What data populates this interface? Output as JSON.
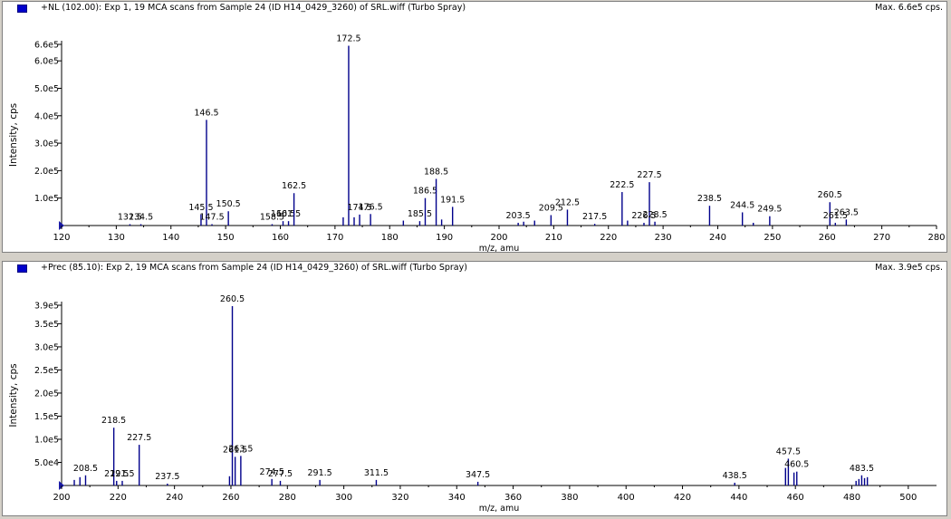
{
  "colors": {
    "trace": "#00008b",
    "axis": "#000000",
    "background": "#ffffff",
    "frame": "#d4d0c8"
  },
  "panes": [
    {
      "title": "+NL (102.00): Exp 1, 19 MCA scans from Sample 24 (ID H14_0429_3260) of SRL.wiff (Turbo Spray)",
      "max_label": "Max. 6.6e5 cps.",
      "icon": "spectrum-icon"
    },
    {
      "title": "+Prec (85.10): Exp 2, 19 MCA scans from Sample 24 (ID H14_0429_3260) of SRL.wiff (Turbo Spray)",
      "max_label": "Max. 3.9e5 cps.",
      "icon": "spectrum-icon"
    }
  ],
  "chart_data": [
    {
      "type": "bar",
      "xlabel": "m/z, amu",
      "ylabel": "Intensity, cps",
      "xlim": [
        120,
        280
      ],
      "ylim": [
        0,
        660000
      ],
      "xticks": [
        "120",
        "130",
        "140",
        "150",
        "160",
        "170",
        "180",
        "190",
        "200",
        "210",
        "220",
        "230",
        "240",
        "250",
        "260",
        "270",
        "280"
      ],
      "yticks": [
        {
          "v": 100000,
          "label": "1.0e5"
        },
        {
          "v": 200000,
          "label": "2.0e5"
        },
        {
          "v": 300000,
          "label": "3.0e5"
        },
        {
          "v": 400000,
          "label": "4.0e5"
        },
        {
          "v": 500000,
          "label": "5.0e5"
        },
        {
          "v": 600000,
          "label": "6.0e5"
        },
        {
          "v": 660000,
          "label": "6.6e5"
        }
      ],
      "peaks": [
        {
          "x": 132.5,
          "y": 5000,
          "label": "132.5"
        },
        {
          "x": 134.5,
          "y": 5000,
          "label": "134.5"
        },
        {
          "x": 145.5,
          "y": 40000,
          "label": "145.5"
        },
        {
          "x": 146.5,
          "y": 385000,
          "label": "146.5"
        },
        {
          "x": 147.5,
          "y": 5000,
          "label": "147.5"
        },
        {
          "x": 150.5,
          "y": 52000,
          "label": "150.5"
        },
        {
          "x": 158.5,
          "y": 5000,
          "label": "158.5"
        },
        {
          "x": 160.5,
          "y": 16000,
          "label": "160.5"
        },
        {
          "x": 161.5,
          "y": 16000,
          "label": "161.5"
        },
        {
          "x": 162.5,
          "y": 118000,
          "label": "162.5"
        },
        {
          "x": 171.5,
          "y": 30000
        },
        {
          "x": 172.5,
          "y": 655000,
          "label": "172.5"
        },
        {
          "x": 173.5,
          "y": 30000
        },
        {
          "x": 174.5,
          "y": 40000,
          "label": "174.5"
        },
        {
          "x": 176.5,
          "y": 42000,
          "label": "176.5"
        },
        {
          "x": 182.5,
          "y": 18000
        },
        {
          "x": 185.5,
          "y": 16000,
          "label": "185.5"
        },
        {
          "x": 186.5,
          "y": 100000,
          "label": "186.5"
        },
        {
          "x": 188.5,
          "y": 170000,
          "label": "188.5"
        },
        {
          "x": 189.5,
          "y": 22000
        },
        {
          "x": 191.5,
          "y": 68000,
          "label": "191.5"
        },
        {
          "x": 203.5,
          "y": 10000,
          "label": "203.5"
        },
        {
          "x": 204.5,
          "y": 14000
        },
        {
          "x": 206.5,
          "y": 18000
        },
        {
          "x": 209.5,
          "y": 38000,
          "label": "209.5"
        },
        {
          "x": 212.5,
          "y": 58000,
          "label": "212.5"
        },
        {
          "x": 217.5,
          "y": 6000,
          "label": "217.5"
        },
        {
          "x": 222.5,
          "y": 122000,
          "label": "222.5"
        },
        {
          "x": 223.5,
          "y": 18000
        },
        {
          "x": 226.5,
          "y": 10000,
          "label": "226.5"
        },
        {
          "x": 227.5,
          "y": 158000,
          "label": "227.5"
        },
        {
          "x": 228.5,
          "y": 14000,
          "label": "228.5"
        },
        {
          "x": 238.5,
          "y": 72000,
          "label": "238.5"
        },
        {
          "x": 244.5,
          "y": 48000,
          "label": "244.5"
        },
        {
          "x": 246.5,
          "y": 10000
        },
        {
          "x": 249.5,
          "y": 34000,
          "label": "249.5"
        },
        {
          "x": 260.5,
          "y": 85000,
          "label": "260.5"
        },
        {
          "x": 261.5,
          "y": 10000,
          "label": "261.5"
        },
        {
          "x": 263.5,
          "y": 22000,
          "label": "263.5"
        }
      ]
    },
    {
      "type": "bar",
      "xlabel": "m/z, amu",
      "ylabel": "Intensity, cps",
      "xlim": [
        200,
        510
      ],
      "ylim": [
        0,
        390000
      ],
      "xticks": [
        "200",
        "220",
        "240",
        "260",
        "280",
        "300",
        "320",
        "340",
        "360",
        "380",
        "400",
        "420",
        "440",
        "460",
        "480",
        "500"
      ],
      "yticks": [
        {
          "v": 50000,
          "label": "5.0e4"
        },
        {
          "v": 100000,
          "label": "1.0e5"
        },
        {
          "v": 150000,
          "label": "1.5e5"
        },
        {
          "v": 200000,
          "label": "2.0e5"
        },
        {
          "v": 250000,
          "label": "2.5e5"
        },
        {
          "v": 300000,
          "label": "3.0e5"
        },
        {
          "v": 350000,
          "label": "3.5e5"
        },
        {
          "v": 390000,
          "label": "3.9e5"
        }
      ],
      "peaks": [
        {
          "x": 204.5,
          "y": 12000
        },
        {
          "x": 206.5,
          "y": 18000
        },
        {
          "x": 208.5,
          "y": 22000,
          "label": "208.5"
        },
        {
          "x": 218.5,
          "y": 125000,
          "label": "218.5"
        },
        {
          "x": 219.5,
          "y": 10000,
          "label": "219.5"
        },
        {
          "x": 221.5,
          "y": 10000,
          "label": "221.5"
        },
        {
          "x": 227.5,
          "y": 88000,
          "label": "227.5"
        },
        {
          "x": 237.5,
          "y": 4000,
          "label": "237.5"
        },
        {
          "x": 259.5,
          "y": 20000
        },
        {
          "x": 260.5,
          "y": 388000,
          "label": "260.5"
        },
        {
          "x": 261.5,
          "y": 62000,
          "label": "261.5"
        },
        {
          "x": 263.5,
          "y": 64000,
          "label": "263.5"
        },
        {
          "x": 274.5,
          "y": 14000,
          "label": "274.5"
        },
        {
          "x": 277.5,
          "y": 10000,
          "label": "277.5"
        },
        {
          "x": 291.5,
          "y": 12000,
          "label": "291.5"
        },
        {
          "x": 311.5,
          "y": 12000,
          "label": "311.5"
        },
        {
          "x": 347.5,
          "y": 8000,
          "label": "347.5"
        },
        {
          "x": 438.5,
          "y": 6000,
          "label": "438.5"
        },
        {
          "x": 456.5,
          "y": 38000
        },
        {
          "x": 457.5,
          "y": 58000,
          "label": "457.5"
        },
        {
          "x": 459.5,
          "y": 28000
        },
        {
          "x": 460.5,
          "y": 30000,
          "label": "460.5"
        },
        {
          "x": 481.5,
          "y": 10000
        },
        {
          "x": 482.5,
          "y": 14000
        },
        {
          "x": 483.5,
          "y": 22000,
          "label": "483.5"
        },
        {
          "x": 484.5,
          "y": 16000
        },
        {
          "x": 485.5,
          "y": 18000
        }
      ]
    }
  ]
}
